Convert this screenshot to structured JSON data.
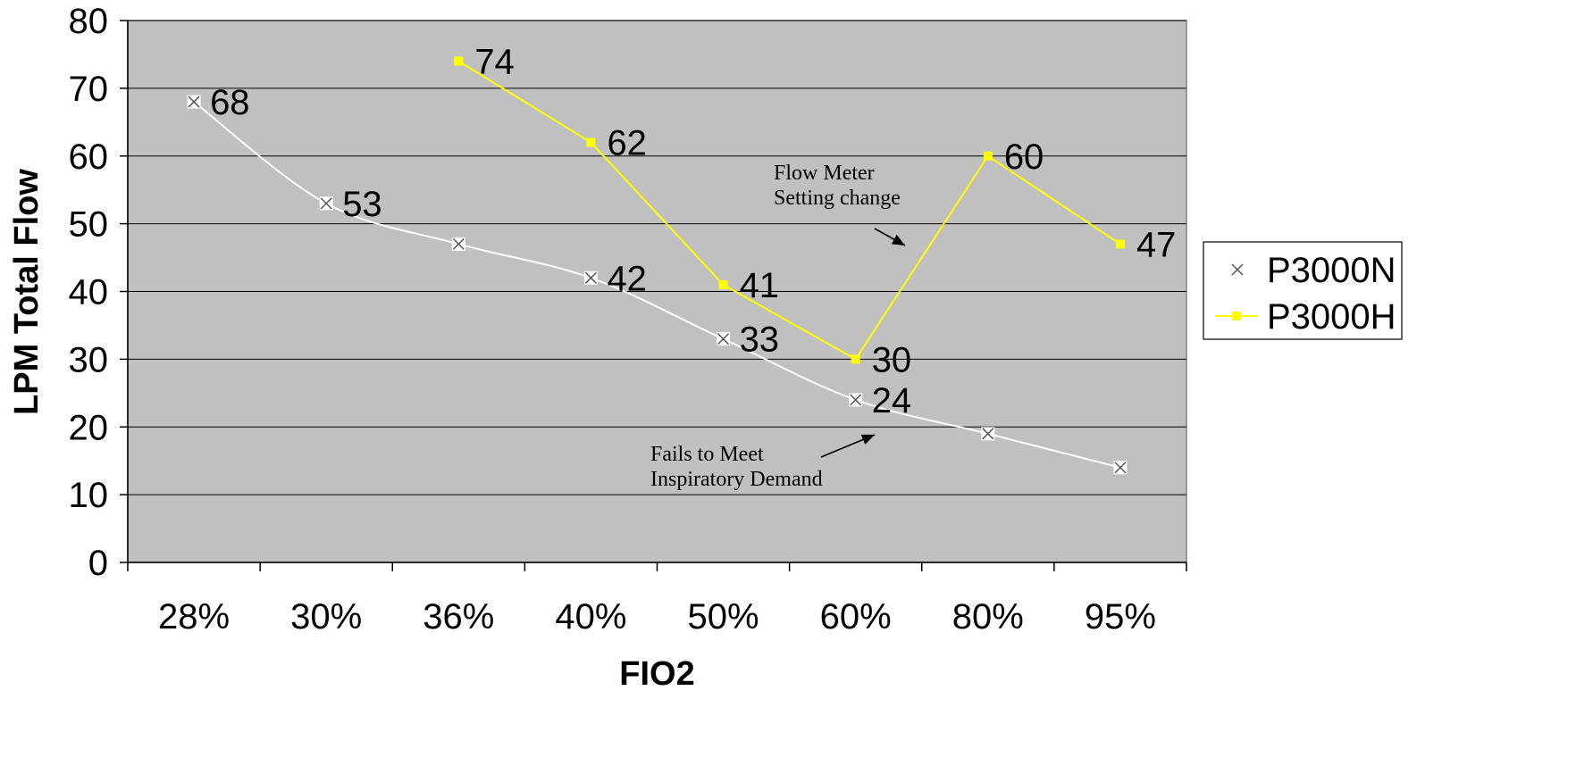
{
  "chart_data": {
    "type": "line",
    "title": "",
    "xlabel": "FIO2",
    "ylabel": "LPM Total Flow",
    "categories": [
      "28%",
      "30%",
      "36%",
      "40%",
      "50%",
      "60%",
      "80%",
      "95%"
    ],
    "ylim": [
      0,
      80
    ],
    "yticks": [
      "0",
      "10",
      "20",
      "30",
      "40",
      "50",
      "60",
      "70",
      "80"
    ],
    "grid": "horizontal",
    "legend_position": "right",
    "plot_background": "#c0c0c0",
    "series": [
      {
        "name": "P3000N",
        "color": "#ffffff",
        "marker": "x-box",
        "values": [
          68,
          53,
          47,
          42,
          33,
          24,
          19,
          14
        ],
        "labels": [
          "68",
          "53",
          "",
          "42",
          "33",
          "24",
          "",
          ""
        ]
      },
      {
        "name": "P3000H",
        "color": "#ffff00",
        "marker": "square",
        "values": [
          null,
          null,
          74,
          62,
          41,
          30,
          60,
          47
        ],
        "labels": [
          "",
          "",
          "74",
          "62",
          "41",
          "30",
          "60",
          "47"
        ]
      }
    ],
    "annotations": [
      {
        "lines": [
          "Flow Meter",
          "Setting change"
        ]
      },
      {
        "lines": [
          "Fails to Meet",
          "Inspiratory Demand"
        ]
      }
    ]
  }
}
